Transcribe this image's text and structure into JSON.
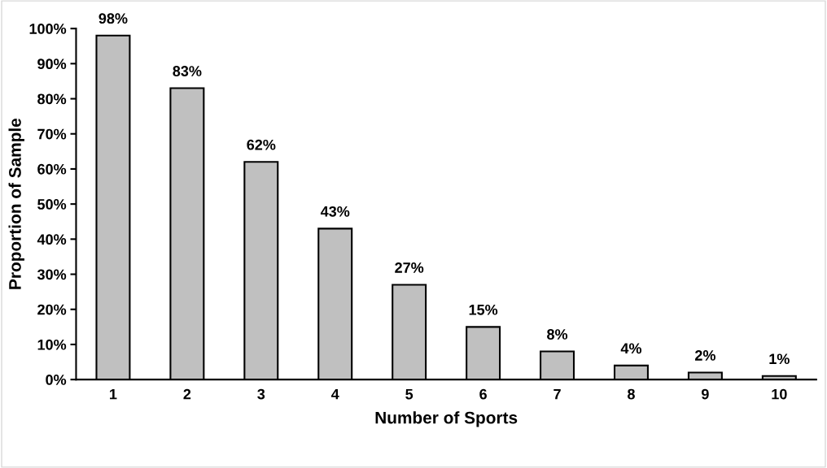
{
  "chart_data": {
    "type": "bar",
    "xlabel": "Number of Sports",
    "ylabel": "Proportion of Sample",
    "categories": [
      "1",
      "2",
      "3",
      "4",
      "5",
      "6",
      "7",
      "8",
      "9",
      "10"
    ],
    "values": [
      98,
      83,
      62,
      43,
      27,
      15,
      8,
      4,
      2,
      1
    ],
    "value_labels": [
      "98%",
      "83%",
      "62%",
      "43%",
      "27%",
      "15%",
      "8%",
      "4%",
      "2%",
      "1%"
    ],
    "color": "#c0c0c0",
    "ylim": [
      0,
      100
    ],
    "yticks": [
      {
        "value": 0,
        "label": "0%"
      },
      {
        "value": 10,
        "label": "10%"
      },
      {
        "value": 20,
        "label": "20%"
      },
      {
        "value": 30,
        "label": "30%"
      },
      {
        "value": 40,
        "label": "40%"
      },
      {
        "value": 50,
        "label": "50%"
      },
      {
        "value": 60,
        "label": "60%"
      },
      {
        "value": 70,
        "label": "70%"
      },
      {
        "value": 80,
        "label": "80%"
      },
      {
        "value": 90,
        "label": "90%"
      },
      {
        "value": 100,
        "label": "100%"
      }
    ],
    "grid": false,
    "legend": false
  }
}
